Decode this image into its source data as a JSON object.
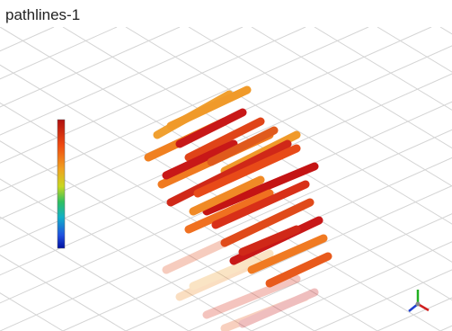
{
  "title": "pathlines-1"
}
